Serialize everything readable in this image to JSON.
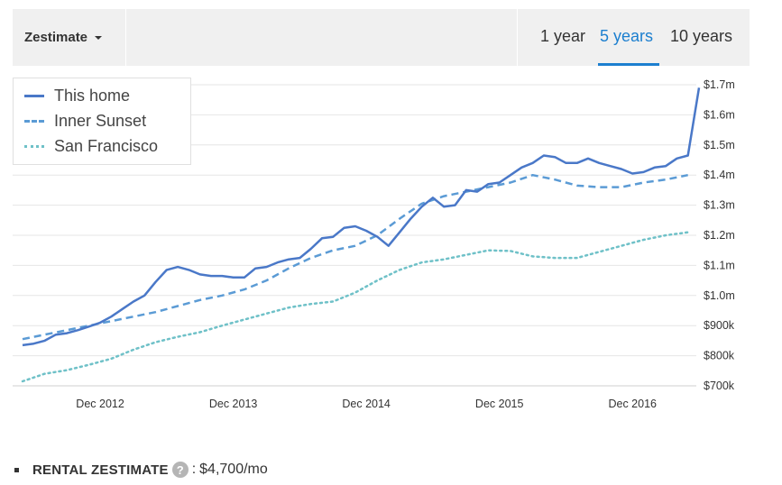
{
  "toolbar": {
    "dropdown_label": "Zestimate",
    "ranges": [
      "1 year",
      "5 years",
      "10 years"
    ],
    "active_range": "5 years",
    "accent": "#1c7fcf"
  },
  "chart_data": {
    "type": "line",
    "x_tick_labels": [
      "Dec 2012",
      "Dec 2013",
      "Dec 2014",
      "Dec 2015",
      "Dec 2016"
    ],
    "y_tick_labels": [
      "$700k",
      "$800k",
      "$900k",
      "$1.0m",
      "$1.1m",
      "$1.2m",
      "$1.3m",
      "$1.4m",
      "$1.5m",
      "$1.6m",
      "$1.7m"
    ],
    "ylim": [
      700000,
      1720000
    ],
    "grid": true,
    "legend_position": "top-left",
    "series": [
      {
        "name": "This home",
        "color": "#4a78c8",
        "style": "solid",
        "x": [
          "2012-05",
          "2012-06",
          "2012-07",
          "2012-08",
          "2012-09",
          "2012-10",
          "2012-11",
          "2012-12",
          "2013-01",
          "2013-02",
          "2013-03",
          "2013-04",
          "2013-05",
          "2013-06",
          "2013-07",
          "2013-08",
          "2013-09",
          "2013-10",
          "2013-11",
          "2013-12",
          "2014-01",
          "2014-02",
          "2014-03",
          "2014-04",
          "2014-05",
          "2014-06",
          "2014-07",
          "2014-08",
          "2014-09",
          "2014-10",
          "2014-11",
          "2014-12",
          "2015-01",
          "2015-02",
          "2015-03",
          "2015-04",
          "2015-05",
          "2015-06",
          "2015-07",
          "2015-08",
          "2015-09",
          "2015-10",
          "2015-11",
          "2015-12",
          "2016-01",
          "2016-02",
          "2016-03",
          "2016-04",
          "2016-05",
          "2016-06",
          "2016-07",
          "2016-08",
          "2016-09",
          "2016-10",
          "2016-11",
          "2016-12",
          "2017-01",
          "2017-02",
          "2017-03",
          "2017-04",
          "2017-05",
          "2017-06"
        ],
        "values": [
          835000,
          840000,
          850000,
          870000,
          875000,
          885000,
          897000,
          910000,
          930000,
          955000,
          980000,
          1000000,
          1045000,
          1085000,
          1095000,
          1085000,
          1070000,
          1065000,
          1065000,
          1060000,
          1060000,
          1090000,
          1095000,
          1110000,
          1120000,
          1125000,
          1155000,
          1190000,
          1195000,
          1225000,
          1230000,
          1215000,
          1195000,
          1165000,
          1210000,
          1255000,
          1295000,
          1325000,
          1295000,
          1300000,
          1350000,
          1345000,
          1370000,
          1375000,
          1400000,
          1425000,
          1440000,
          1465000,
          1460000,
          1440000,
          1440000,
          1455000,
          1440000,
          1430000,
          1420000,
          1405000,
          1410000,
          1425000,
          1430000,
          1455000,
          1465000,
          1690000
        ]
      },
      {
        "name": "Inner Sunset",
        "color": "#5b9bd5",
        "style": "dashed",
        "x": [
          "2012-05",
          "2012-07",
          "2012-09",
          "2012-11",
          "2013-01",
          "2013-03",
          "2013-05",
          "2013-07",
          "2013-09",
          "2013-11",
          "2014-01",
          "2014-03",
          "2014-05",
          "2014-07",
          "2014-09",
          "2014-11",
          "2015-01",
          "2015-03",
          "2015-05",
          "2015-07",
          "2015-09",
          "2015-11",
          "2016-01",
          "2016-03",
          "2016-05",
          "2016-07",
          "2016-09",
          "2016-11",
          "2017-01",
          "2017-03",
          "2017-05"
        ],
        "values": [
          855000,
          870000,
          885000,
          900000,
          915000,
          930000,
          945000,
          965000,
          985000,
          1000000,
          1020000,
          1050000,
          1090000,
          1125000,
          1150000,
          1165000,
          1200000,
          1255000,
          1305000,
          1330000,
          1345000,
          1360000,
          1375000,
          1400000,
          1385000,
          1365000,
          1360000,
          1360000,
          1375000,
          1385000,
          1400000
        ]
      },
      {
        "name": "San Francisco",
        "color": "#6fc1c8",
        "style": "dotted",
        "x": [
          "2012-05",
          "2012-07",
          "2012-09",
          "2012-11",
          "2013-01",
          "2013-03",
          "2013-05",
          "2013-07",
          "2013-09",
          "2013-11",
          "2014-01",
          "2014-03",
          "2014-05",
          "2014-07",
          "2014-09",
          "2014-11",
          "2015-01",
          "2015-03",
          "2015-05",
          "2015-07",
          "2015-09",
          "2015-11",
          "2016-01",
          "2016-03",
          "2016-05",
          "2016-07",
          "2016-09",
          "2016-11",
          "2017-01",
          "2017-03",
          "2017-05"
        ],
        "values": [
          715000,
          740000,
          752000,
          770000,
          790000,
          820000,
          845000,
          863000,
          878000,
          900000,
          920000,
          940000,
          960000,
          972000,
          980000,
          1010000,
          1050000,
          1085000,
          1110000,
          1120000,
          1135000,
          1150000,
          1148000,
          1130000,
          1125000,
          1125000,
          1145000,
          1165000,
          1185000,
          1200000,
          1210000
        ]
      }
    ]
  },
  "footer": {
    "label": "RENTAL ZESTIMATE",
    "help": "?",
    "separator": ":",
    "value": "$4,700/mo"
  }
}
